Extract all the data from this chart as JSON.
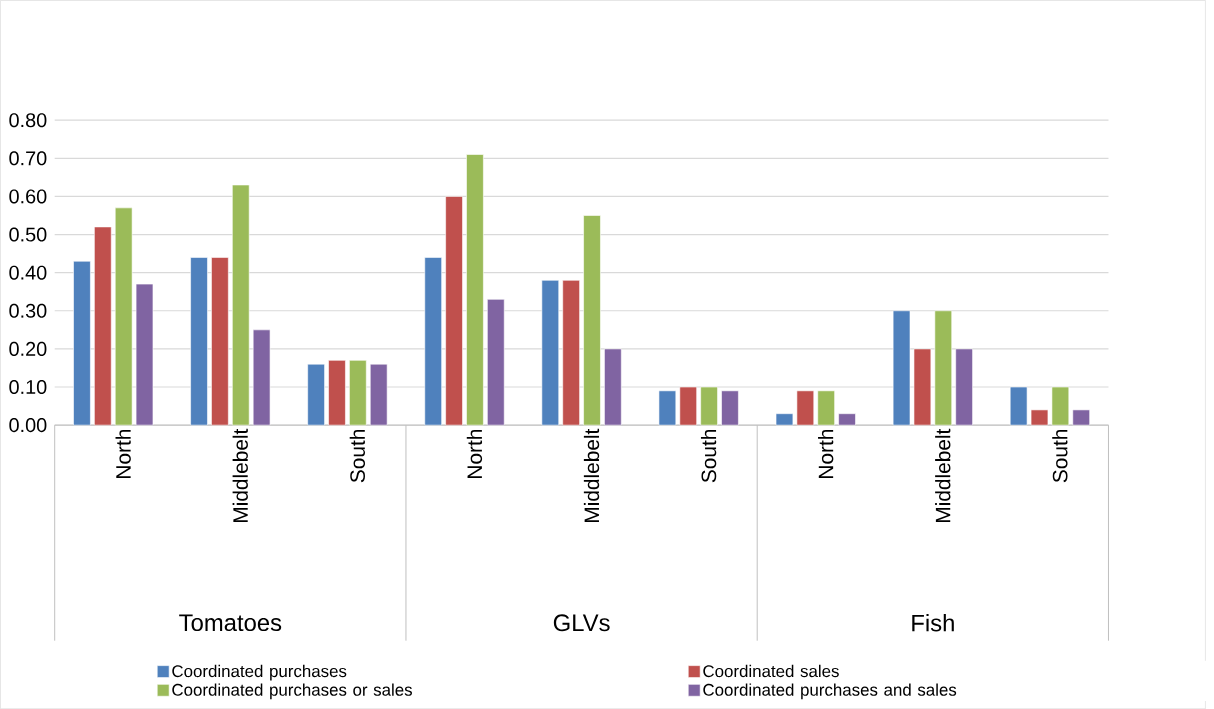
{
  "chart_data": {
    "type": "bar",
    "categories": [
      "North",
      "Middlebelt",
      "South",
      "North",
      "Middlebelt",
      "South",
      "North",
      "Middlebelt",
      "South"
    ],
    "series": [
      {
        "name": "Coordinated purchases",
        "color": "#4f81bd",
        "values": [
          0.43,
          0.44,
          0.16,
          0.44,
          0.38,
          0.09,
          0.03,
          0.3,
          0.1
        ]
      },
      {
        "name": "Coordinated sales",
        "color": "#c0504d",
        "values": [
          0.52,
          0.44,
          0.17,
          0.6,
          0.38,
          0.1,
          0.09,
          0.2,
          0.04
        ]
      },
      {
        "name": "Coordinated purchases or sales",
        "color": "#9bbb59",
        "values": [
          0.57,
          0.63,
          0.17,
          0.71,
          0.55,
          0.1,
          0.09,
          0.3,
          0.1
        ]
      },
      {
        "name": "Coordinated purchases and sales",
        "color": "#8064a2",
        "values": [
          0.37,
          0.25,
          0.16,
          0.33,
          0.2,
          0.09,
          0.03,
          0.2,
          0.04
        ]
      }
    ],
    "annotations": [
      "Tomatoes",
      "GLVs",
      "Fish"
    ],
    "ylim": [
      0,
      0.8
    ],
    "yticks": [
      {
        "value": 0,
        "label": "0.00"
      },
      {
        "value": 0.1,
        "label": "0.10"
      },
      {
        "value": 0.2,
        "label": "0.20"
      },
      {
        "value": 0.3,
        "label": "0.30"
      },
      {
        "value": 0.4,
        "label": "0.40"
      },
      {
        "value": 0.5,
        "label": "0.50"
      },
      {
        "value": 0.6,
        "label": "0.60"
      },
      {
        "value": 0.7,
        "label": "0.70"
      },
      {
        "value": 0.8,
        "label": "0.80"
      }
    ],
    "grid": "y",
    "legend": "bottom"
  }
}
